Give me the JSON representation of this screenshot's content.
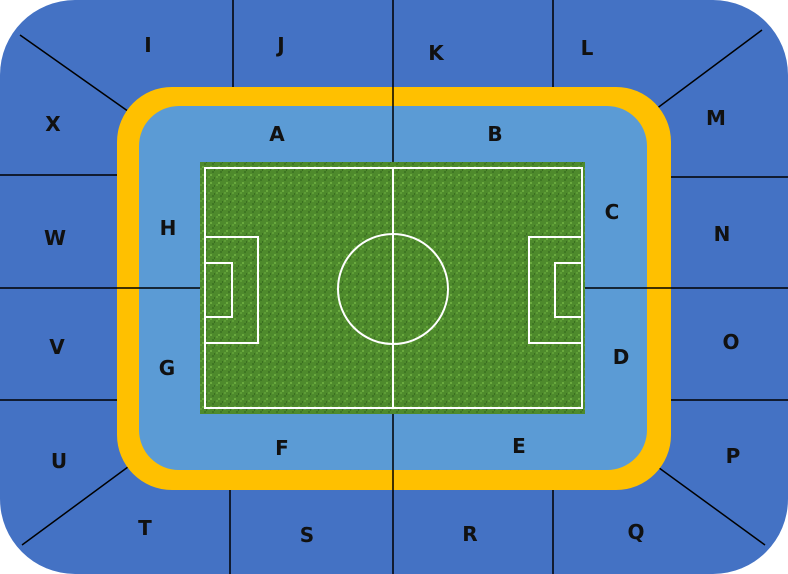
{
  "colors": {
    "outer_tier": "#4472C4",
    "inner_tier": "#5B9BD5",
    "concourse_ring": "#FFC000",
    "pitch": "#4E8A2C",
    "pitch_lines": "#FFFFFF",
    "dividers": "#000000"
  },
  "sections": {
    "inner": {
      "A": "A",
      "B": "B",
      "C": "C",
      "D": "D",
      "E": "E",
      "F": "F",
      "G": "G",
      "H": "H"
    },
    "outer": {
      "I": "I",
      "J": "J",
      "K": "K",
      "L": "L",
      "M": "M",
      "N": "N",
      "O": "O",
      "P": "P",
      "Q": "Q",
      "R": "R",
      "S": "S",
      "T": "T",
      "U": "U",
      "V": "V",
      "W": "W",
      "X": "X"
    }
  }
}
